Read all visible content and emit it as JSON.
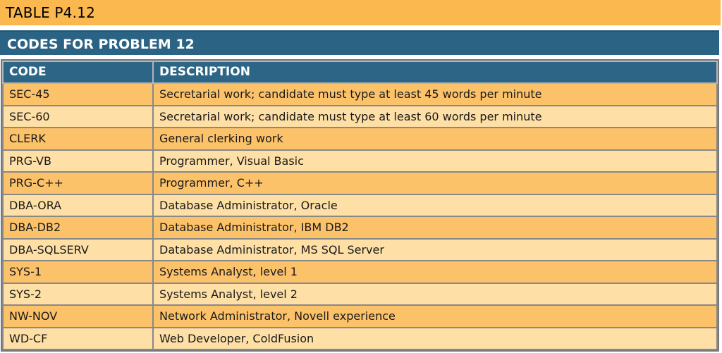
{
  "table_label": "TABLE P4.12",
  "title": "CODES FOR PROBLEM 12",
  "columns": {
    "code": "CODE",
    "description": "DESCRIPTION"
  },
  "rows": [
    {
      "code": "SEC-45",
      "description": "Secretarial work; candidate must type at least 45 words per minute"
    },
    {
      "code": "SEC-60",
      "description": "Secretarial work; candidate must type at least 60 words per minute"
    },
    {
      "code": "CLERK",
      "description": "General clerking work"
    },
    {
      "code": "PRG-VB",
      "description": "Programmer, Visual Basic"
    },
    {
      "code": "PRG-C++",
      "description": "Programmer, C++"
    },
    {
      "code": "DBA-ORA",
      "description": "Database Administrator, Oracle"
    },
    {
      "code": "DBA-DB2",
      "description": "Database Administrator, IBM DB2"
    },
    {
      "code": "DBA-SQLSERV",
      "description": "Database Administrator, MS SQL Server"
    },
    {
      "code": "SYS-1",
      "description": "Systems Analyst, level 1"
    },
    {
      "code": "SYS-2",
      "description": "Systems Analyst, level 2"
    },
    {
      "code": "NW-NOV",
      "description": "Network Administrator, Novell experience"
    },
    {
      "code": "WD-CF",
      "description": "Web Developer, ColdFusion"
    }
  ]
}
